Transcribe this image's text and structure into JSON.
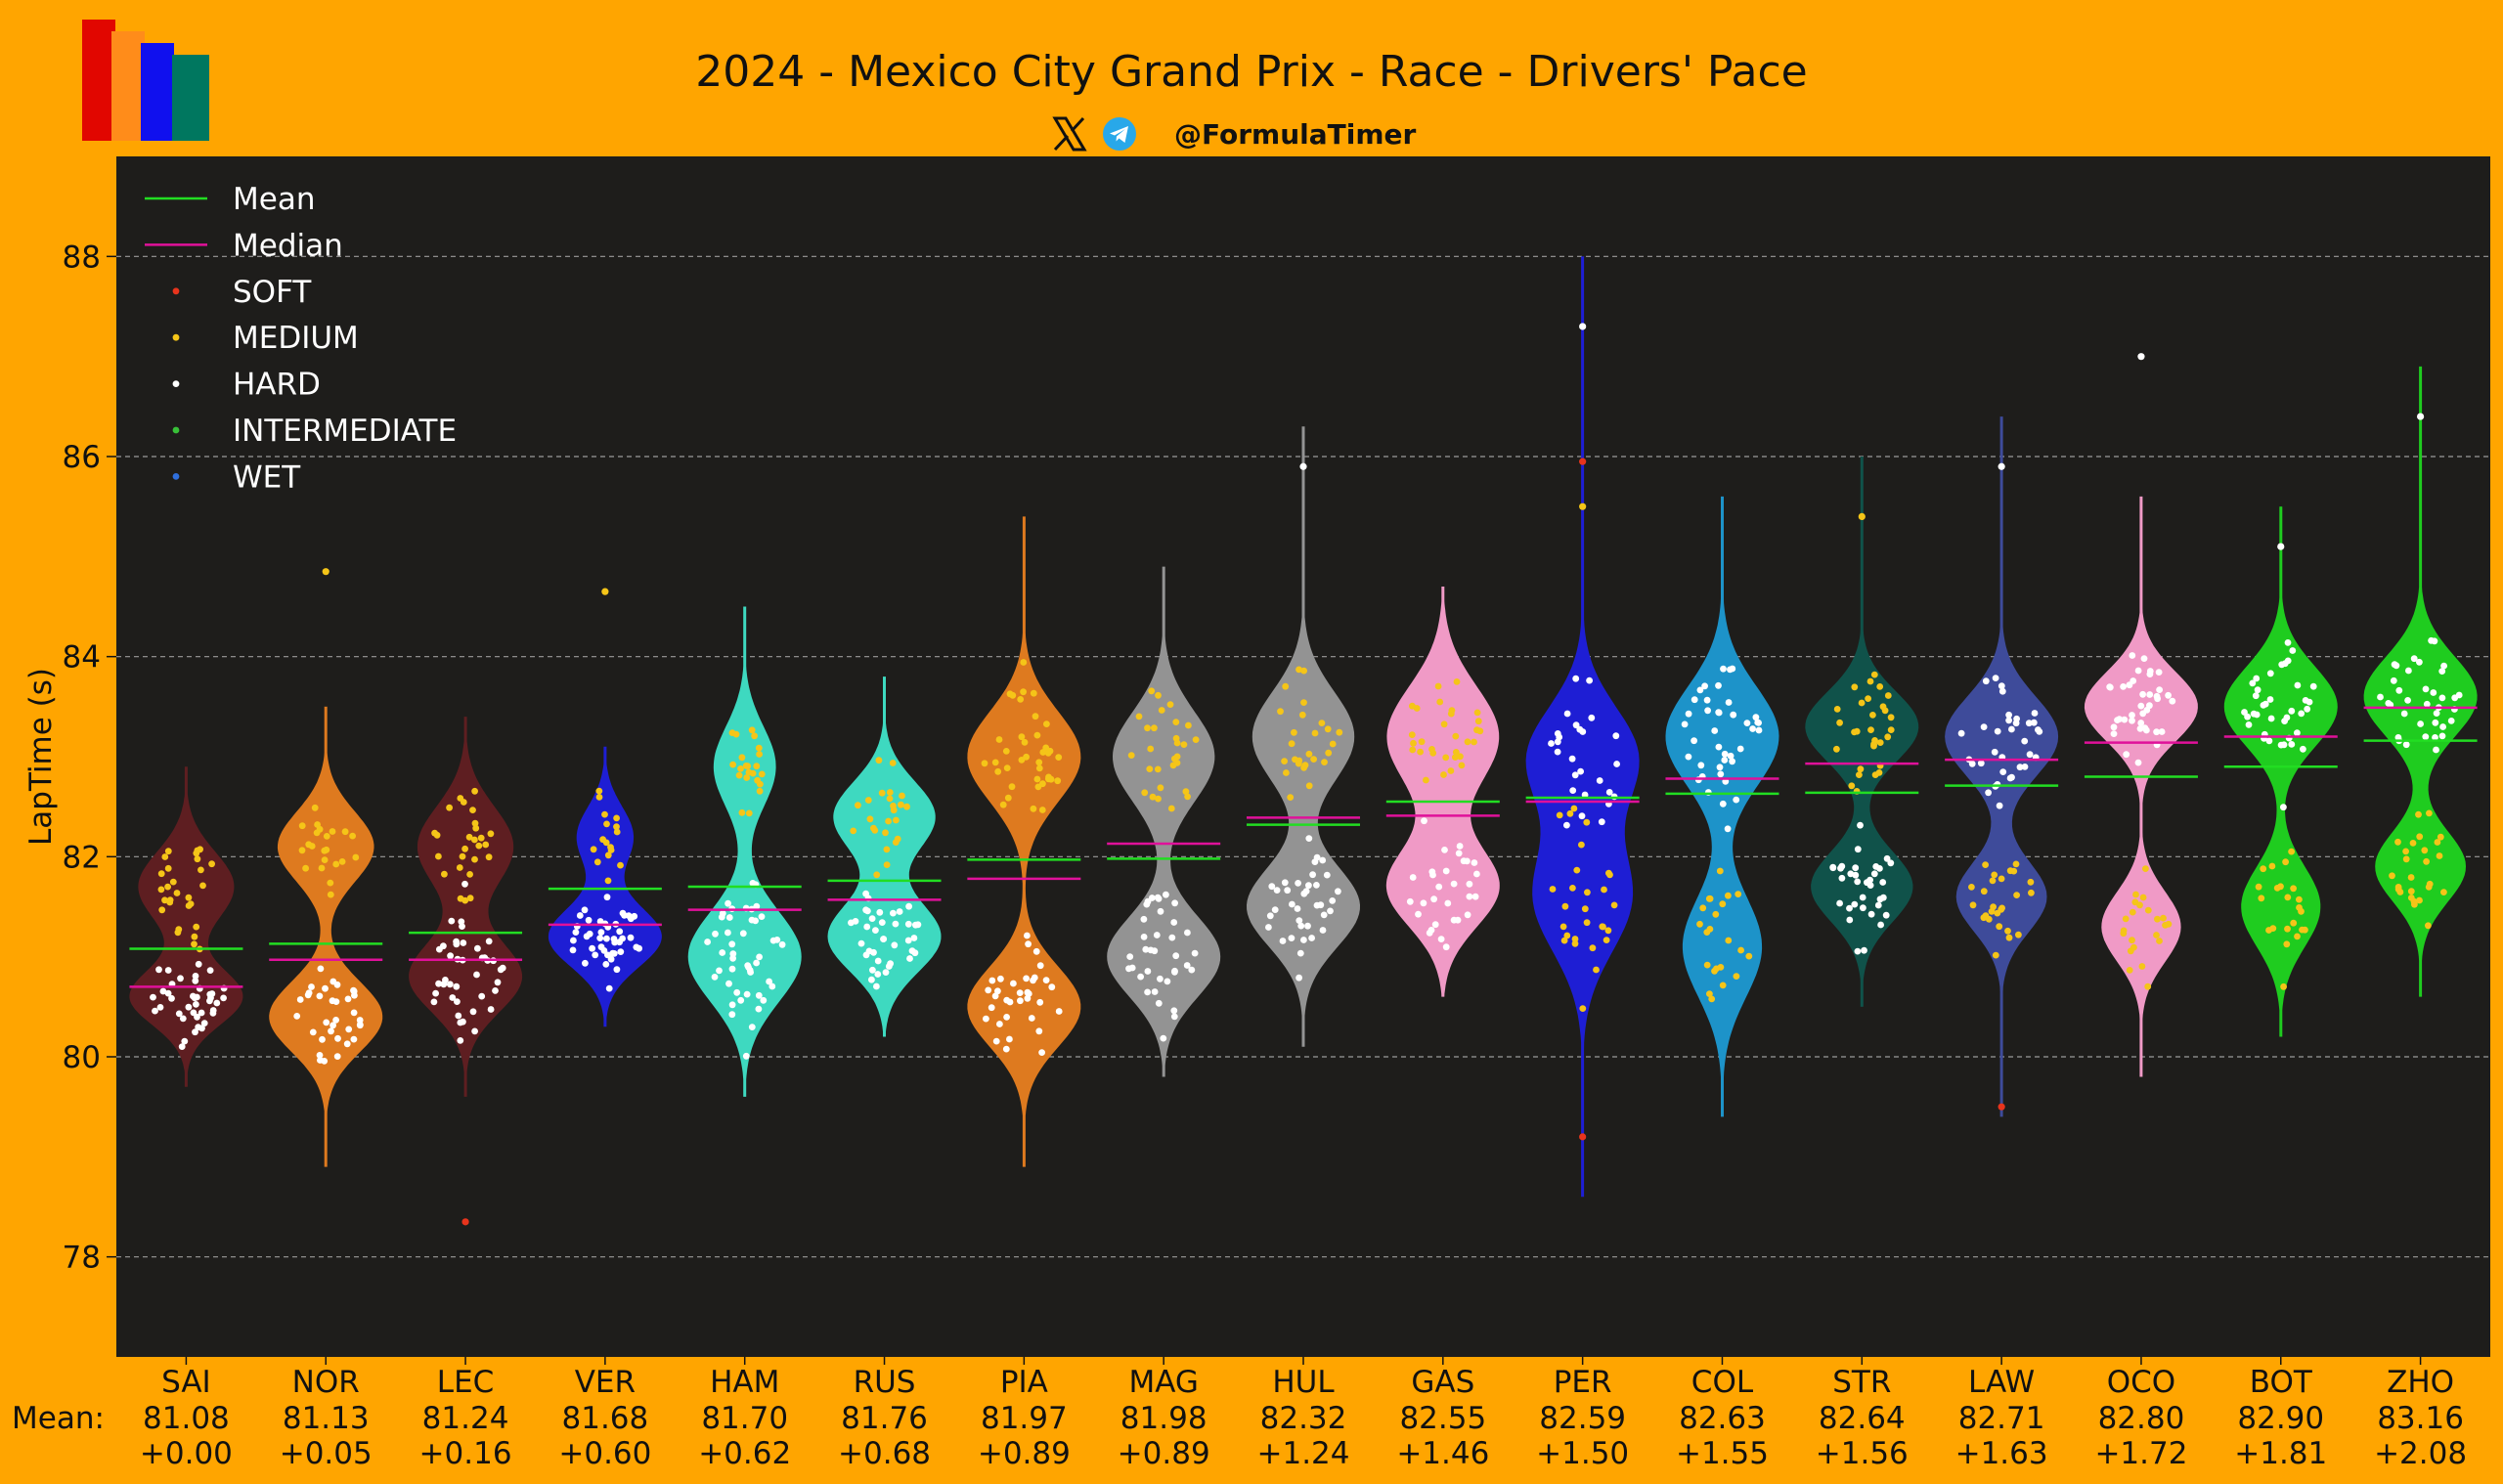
{
  "header": {
    "title": "2024 - Mexico City Grand Prix - Race - Drivers' Pace",
    "handle": "@FormulaTimer",
    "social_icons": [
      "x-logo-icon",
      "telegram-icon"
    ],
    "logo_colors": [
      "#E10600",
      "#FF8C1A",
      "#1010EE",
      "#00775F"
    ]
  },
  "theme": {
    "background": "#FFA500",
    "plot_background": "#1E1D1B",
    "mean_color": "#22DD22",
    "median_color": "#E0119A",
    "compound_colors": {
      "SOFT": "#E8341C",
      "MEDIUM": "#F5C518",
      "HARD": "#FFFFFF",
      "INTERMEDIATE": "#38C038",
      "WET": "#2F6FDD"
    }
  },
  "chart_data": {
    "type": "violin",
    "title": "2024 - Mexico City Grand Prix - Race - Drivers' Pace",
    "ylabel": "LapTime (s)",
    "ylim": [
      77,
      89
    ],
    "yticks": [
      78,
      80,
      82,
      84,
      86,
      88
    ],
    "grid": true,
    "legend_position": "top-left",
    "legend": [
      "Mean",
      "Median",
      "SOFT",
      "MEDIUM",
      "HARD",
      "INTERMEDIATE",
      "WET"
    ],
    "mean_row_label": "Mean:",
    "drivers": [
      {
        "name": "SAI",
        "color": "#5E1E21",
        "mean": 81.08,
        "mean_label": "81.08",
        "gap": "+0.00",
        "median": 80.7,
        "min": 79.7,
        "max": 82.9,
        "clusters": [
          {
            "c": 80.6,
            "s": 0.28,
            "w": 1.0,
            "n": 40,
            "t": "HARD"
          },
          {
            "c": 81.7,
            "s": 0.35,
            "w": 0.85,
            "n": 28,
            "t": "MEDIUM"
          }
        ]
      },
      {
        "name": "NOR",
        "color": "#DE7A1F",
        "mean": 81.13,
        "mean_label": "81.13",
        "gap": "+0.05",
        "median": 80.97,
        "min": 78.9,
        "max": 83.5,
        "clusters": [
          {
            "c": 80.4,
            "s": 0.35,
            "w": 1.0,
            "n": 34,
            "t": "HARD"
          },
          {
            "c": 82.1,
            "s": 0.35,
            "w": 0.85,
            "n": 22,
            "t": "MEDIUM"
          }
        ]
      },
      {
        "name": "LEC",
        "color": "#5E1E21",
        "mean": 81.24,
        "mean_label": "81.24",
        "gap": "+0.16",
        "median": 80.97,
        "min": 79.6,
        "max": 83.4,
        "clusters": [
          {
            "c": 80.8,
            "s": 0.35,
            "w": 1.0,
            "n": 40,
            "t": "HARD"
          },
          {
            "c": 82.1,
            "s": 0.4,
            "w": 0.85,
            "n": 26,
            "t": "MEDIUM"
          }
        ]
      },
      {
        "name": "VER",
        "color": "#1E1ED4",
        "mean": 81.68,
        "mean_label": "81.68",
        "gap": "+0.60",
        "median": 81.32,
        "min": 80.3,
        "max": 83.1,
        "clusters": [
          {
            "c": 81.2,
            "s": 0.3,
            "w": 1.0,
            "n": 44,
            "t": "HARD"
          },
          {
            "c": 82.2,
            "s": 0.3,
            "w": 0.5,
            "n": 16,
            "t": "MEDIUM"
          }
        ]
      },
      {
        "name": "HAM",
        "color": "#3ED9C0",
        "mean": 81.7,
        "mean_label": "81.70",
        "gap": "+0.62",
        "median": 81.47,
        "min": 79.6,
        "max": 84.5,
        "clusters": [
          {
            "c": 81.0,
            "s": 0.45,
            "w": 1.0,
            "n": 46,
            "t": "HARD"
          },
          {
            "c": 82.9,
            "s": 0.4,
            "w": 0.55,
            "n": 22,
            "t": "MEDIUM"
          }
        ]
      },
      {
        "name": "RUS",
        "color": "#3ED9C0",
        "mean": 81.76,
        "mean_label": "81.76",
        "gap": "+0.68",
        "median": 81.57,
        "min": 80.2,
        "max": 83.8,
        "clusters": [
          {
            "c": 81.2,
            "s": 0.35,
            "w": 1.0,
            "n": 38,
            "t": "HARD"
          },
          {
            "c": 82.4,
            "s": 0.35,
            "w": 0.9,
            "n": 24,
            "t": "MEDIUM"
          }
        ]
      },
      {
        "name": "PIA",
        "color": "#DE7A1F",
        "mean": 81.97,
        "mean_label": "81.97",
        "gap": "+0.89",
        "median": 81.78,
        "min": 78.9,
        "max": 85.4,
        "clusters": [
          {
            "c": 80.5,
            "s": 0.4,
            "w": 1.0,
            "n": 34,
            "t": "HARD"
          },
          {
            "c": 83.0,
            "s": 0.45,
            "w": 1.0,
            "n": 38,
            "t": "MEDIUM"
          }
        ]
      },
      {
        "name": "MAG",
        "color": "#939393",
        "mean": 81.98,
        "mean_label": "81.98",
        "gap": "+0.89",
        "median": 82.13,
        "min": 79.8,
        "max": 84.9,
        "clusters": [
          {
            "c": 81.0,
            "s": 0.4,
            "w": 1.0,
            "n": 36,
            "t": "HARD"
          },
          {
            "c": 83.0,
            "s": 0.45,
            "w": 0.9,
            "n": 28,
            "t": "MEDIUM"
          }
        ]
      },
      {
        "name": "HUL",
        "color": "#939393",
        "mean": 82.32,
        "mean_label": "82.32",
        "gap": "+1.24",
        "median": 82.39,
        "min": 80.1,
        "max": 86.3,
        "clusters": [
          {
            "c": 81.5,
            "s": 0.4,
            "w": 1.0,
            "n": 36,
            "t": "HARD"
          },
          {
            "c": 83.2,
            "s": 0.45,
            "w": 0.9,
            "n": 26,
            "t": "MEDIUM"
          }
        ]
      },
      {
        "name": "GAS",
        "color": "#F09AC6",
        "mean": 82.55,
        "mean_label": "82.55",
        "gap": "+1.46",
        "median": 82.41,
        "min": 80.6,
        "max": 84.7,
        "clusters": [
          {
            "c": 81.7,
            "s": 0.4,
            "w": 1.0,
            "n": 30,
            "t": "HARD"
          },
          {
            "c": 83.2,
            "s": 0.5,
            "w": 1.0,
            "n": 30,
            "t": "MEDIUM"
          }
        ]
      },
      {
        "name": "PER",
        "color": "#1E1ED4",
        "mean": 82.59,
        "mean_label": "82.59",
        "gap": "+1.50",
        "median": 82.55,
        "min": 78.6,
        "max": 88.0,
        "clusters": [
          {
            "c": 81.6,
            "s": 0.55,
            "w": 0.9,
            "n": 28,
            "t": "MEDIUM"
          },
          {
            "c": 83.0,
            "s": 0.5,
            "w": 1.0,
            "n": 26,
            "t": "HARD"
          }
        ]
      },
      {
        "name": "COL",
        "color": "#1D93C9",
        "mean": 82.63,
        "mean_label": "82.63",
        "gap": "+1.55",
        "median": 82.78,
        "min": 79.4,
        "max": 85.6,
        "clusters": [
          {
            "c": 81.1,
            "s": 0.5,
            "w": 0.7,
            "n": 22,
            "t": "MEDIUM"
          },
          {
            "c": 83.2,
            "s": 0.5,
            "w": 1.0,
            "n": 40,
            "t": "HARD"
          }
        ]
      },
      {
        "name": "STR",
        "color": "#10524A",
        "mean": 82.64,
        "mean_label": "82.64",
        "gap": "+1.56",
        "median": 82.93,
        "min": 80.5,
        "max": 86.0,
        "clusters": [
          {
            "c": 81.7,
            "s": 0.35,
            "w": 0.9,
            "n": 34,
            "t": "HARD"
          },
          {
            "c": 83.3,
            "s": 0.35,
            "w": 1.0,
            "n": 30,
            "t": "MEDIUM"
          }
        ]
      },
      {
        "name": "LAW",
        "color": "#3E4B9A",
        "mean": 82.71,
        "mean_label": "82.71",
        "gap": "+1.63",
        "median": 82.97,
        "min": 79.4,
        "max": 86.4,
        "clusters": [
          {
            "c": 81.6,
            "s": 0.35,
            "w": 0.8,
            "n": 26,
            "t": "MEDIUM"
          },
          {
            "c": 83.2,
            "s": 0.4,
            "w": 1.0,
            "n": 34,
            "t": "HARD"
          }
        ]
      },
      {
        "name": "OCO",
        "color": "#F09AC6",
        "mean": 82.8,
        "mean_label": "82.80",
        "gap": "+1.72",
        "median": 83.14,
        "min": 79.8,
        "max": 85.6,
        "clusters": [
          {
            "c": 81.3,
            "s": 0.35,
            "w": 0.7,
            "n": 22,
            "t": "MEDIUM"
          },
          {
            "c": 83.5,
            "s": 0.35,
            "w": 1.0,
            "n": 38,
            "t": "HARD"
          }
        ]
      },
      {
        "name": "BOT",
        "color": "#1FCC1F",
        "mean": 82.9,
        "mean_label": "82.90",
        "gap": "+1.81",
        "median": 83.2,
        "min": 80.2,
        "max": 85.5,
        "clusters": [
          {
            "c": 81.5,
            "s": 0.4,
            "w": 0.7,
            "n": 22,
            "t": "MEDIUM"
          },
          {
            "c": 83.5,
            "s": 0.4,
            "w": 1.0,
            "n": 38,
            "t": "HARD"
          }
        ]
      },
      {
        "name": "ZHO",
        "color": "#1FCC1F",
        "mean": 83.16,
        "mean_label": "83.16",
        "gap": "+2.08",
        "median": 83.49,
        "min": 80.6,
        "max": 86.9,
        "clusters": [
          {
            "c": 81.9,
            "s": 0.35,
            "w": 0.8,
            "n": 26,
            "t": "MEDIUM"
          },
          {
            "c": 83.6,
            "s": 0.4,
            "w": 1.0,
            "n": 36,
            "t": "HARD"
          }
        ]
      }
    ],
    "outliers": [
      {
        "driver": "LEC",
        "y": 78.35,
        "t": "SOFT"
      },
      {
        "driver": "PER",
        "y": 79.2,
        "t": "SOFT"
      },
      {
        "driver": "LAW",
        "y": 79.5,
        "t": "SOFT"
      },
      {
        "driver": "PER",
        "y": 87.3,
        "t": "HARD"
      },
      {
        "driver": "PER",
        "y": 85.95,
        "t": "SOFT"
      },
      {
        "driver": "PER",
        "y": 85.5,
        "t": "MEDIUM"
      },
      {
        "driver": "OCO",
        "y": 87.0,
        "t": "HARD"
      },
      {
        "driver": "ZHO",
        "y": 86.4,
        "t": "HARD"
      },
      {
        "driver": "HUL",
        "y": 85.9,
        "t": "HARD"
      },
      {
        "driver": "LAW",
        "y": 85.9,
        "t": "HARD"
      },
      {
        "driver": "NOR",
        "y": 84.85,
        "t": "MEDIUM"
      },
      {
        "driver": "VER",
        "y": 84.65,
        "t": "MEDIUM"
      },
      {
        "driver": "STR",
        "y": 85.4,
        "t": "MEDIUM"
      },
      {
        "driver": "BOT",
        "y": 85.1,
        "t": "HARD"
      }
    ]
  }
}
